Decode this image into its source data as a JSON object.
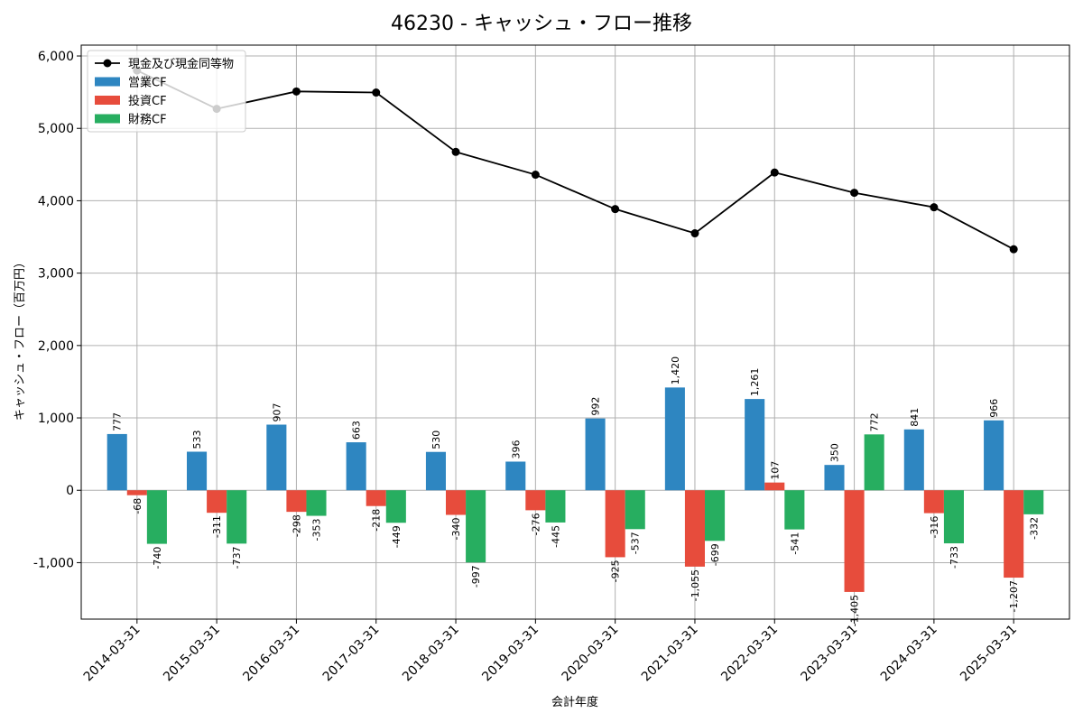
{
  "chart_data": {
    "type": "bar",
    "title": "46230 - キャッシュ・フロー推移",
    "xlabel": "会計年度",
    "ylabel": "キャッシュ・フロー（百万円）",
    "ylim": [
      -1780,
      6150
    ],
    "yticks": [
      -1000,
      0,
      1000,
      2000,
      3000,
      4000,
      5000,
      6000
    ],
    "ytick_labels": [
      "-1,000",
      "0",
      "1,000",
      "2,000",
      "3,000",
      "4,000",
      "5,000",
      "6,000"
    ],
    "grid": true,
    "legend_position": "top-left",
    "categories": [
      "2014-03-31",
      "2015-03-31",
      "2016-03-31",
      "2017-03-31",
      "2018-03-31",
      "2019-03-31",
      "2020-03-31",
      "2021-03-31",
      "2022-03-31",
      "2023-03-31",
      "2024-03-31",
      "2025-03-31"
    ],
    "series": [
      {
        "name": "営業CF",
        "kind": "bar",
        "color": "#2e86c1",
        "values": [
          777,
          533,
          907,
          663,
          530,
          396,
          992,
          1420,
          1261,
          350,
          841,
          966
        ],
        "labels": [
          "777",
          "533",
          "907",
          "663",
          "530",
          "396",
          "992",
          "1,420",
          "1,261",
          "350",
          "841",
          "966"
        ]
      },
      {
        "name": "投資CF",
        "kind": "bar",
        "color": "#e74c3c",
        "values": [
          -68,
          -311,
          -298,
          -218,
          -340,
          -276,
          -925,
          -1055,
          107,
          -1405,
          -316,
          -1207
        ],
        "labels": [
          "-68",
          "-311",
          "-298",
          "-218",
          "-340",
          "-276",
          "-925",
          "-1,055",
          "107",
          "-1,405",
          "-316",
          "-1,207"
        ]
      },
      {
        "name": "財務CF",
        "kind": "bar",
        "color": "#27ae60",
        "values": [
          -740,
          -737,
          -353,
          -449,
          -997,
          -445,
          -537,
          -699,
          -541,
          772,
          -733,
          -332
        ],
        "labels": [
          "-740",
          "-737",
          "-353",
          "-449",
          "-997",
          "-445",
          "-537",
          "-699",
          "-541",
          "772",
          "-733",
          "-332"
        ]
      },
      {
        "name": "現金及び現金同等物",
        "kind": "line",
        "color": "#000000",
        "values": [
          5800,
          5270,
          5510,
          5495,
          4675,
          4360,
          3885,
          3550,
          4390,
          4110,
          3910,
          3330
        ]
      }
    ]
  }
}
